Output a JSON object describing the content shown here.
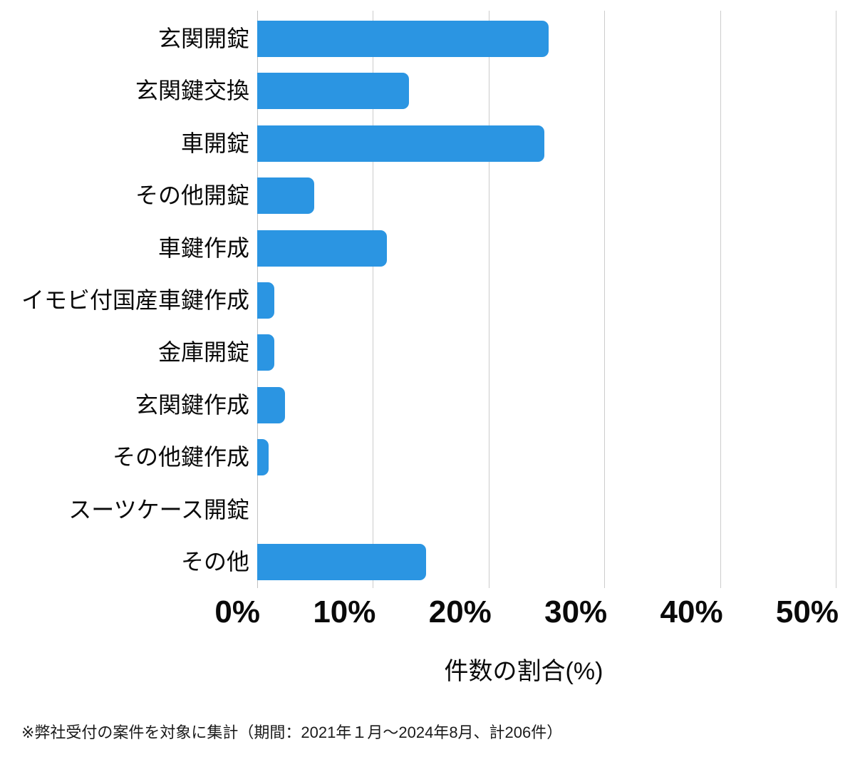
{
  "chart_data": {
    "type": "bar",
    "orientation": "horizontal",
    "title": "",
    "categories": [
      "玄関開錠",
      "玄関鍵交換",
      "車開錠",
      "その他開錠",
      "車鍵作成",
      "イモビ付国産車鍵作成",
      "金庫開錠",
      "玄関鍵作成",
      "その他鍵作成",
      "スーツケース開錠",
      "その他"
    ],
    "values": [
      25.2,
      13.1,
      24.8,
      4.9,
      11.2,
      1.5,
      1.5,
      2.4,
      1.0,
      0,
      14.6
    ],
    "unit": "%",
    "xlabel": "件数の割合(%)",
    "ylabel": "",
    "x_ticks": [
      "0%",
      "10%",
      "20%",
      "30%",
      "40%",
      "50%"
    ],
    "xlim": [
      0,
      50
    ],
    "grid": "vertical-only",
    "legend": "none",
    "bar_color": "#2b95e2",
    "grid_color": "#cccccc"
  },
  "footnote": "※弊社受付の案件を対象に集計（期間：2021年１月～2024年8月、計206件）"
}
